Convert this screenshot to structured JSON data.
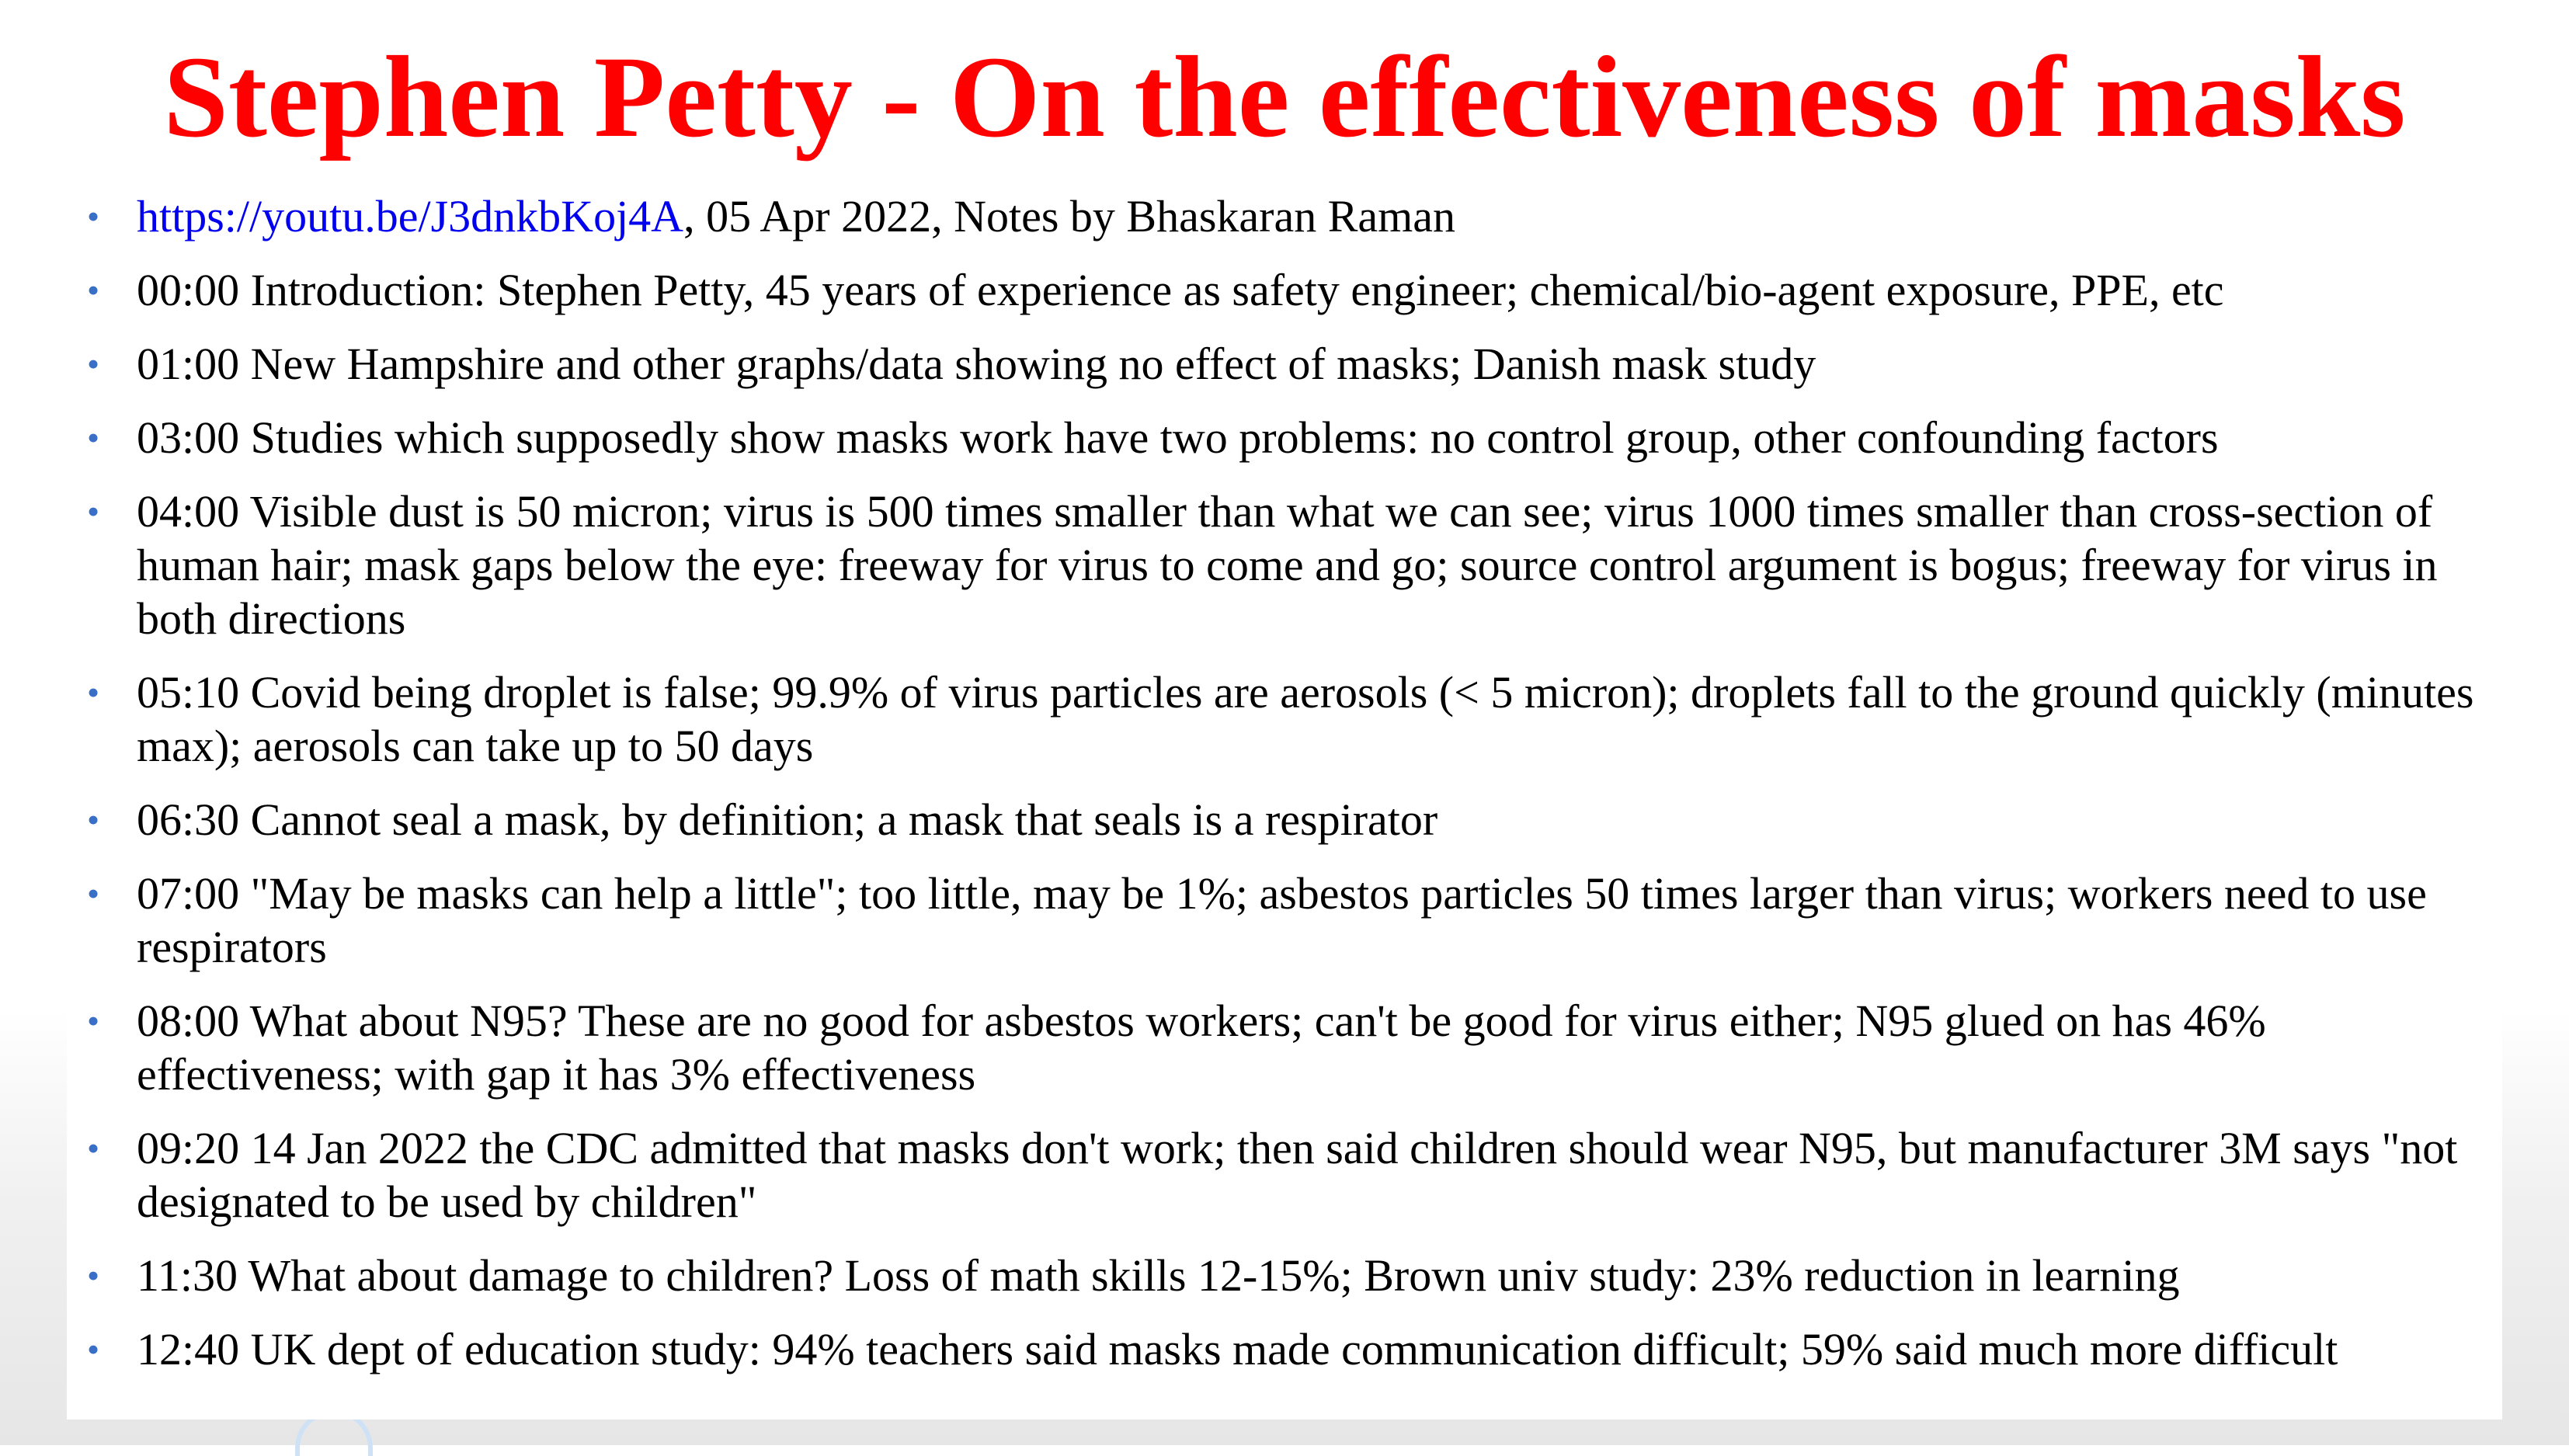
{
  "title": "Stephen Petty - On the effectiveness of masks",
  "bullet_marker": "•",
  "intro": {
    "link": "https://youtu.be/J3dnkbKoj4A",
    "text": ", 05 Apr 2022, Notes by Bhaskaran Raman"
  },
  "items": [
    "00:00 Introduction: Stephen Petty, 45 years of experience as safety engineer; chemical/bio-agent exposure, PPE, etc",
    "01:00 New Hampshire and other graphs/data showing no effect of masks; Danish mask study",
    "03:00 Studies which supposedly show masks work have two problems: no control group, other confounding factors",
    "04:00 Visible dust is 50 micron; virus is 500 times smaller than what we can see; virus 1000 times smaller than cross-section of human hair; mask gaps below the eye: freeway for virus to come and go; source control argument is bogus; freeway for virus in both directions",
    "05:10 Covid being droplet is false; 99.9% of virus particles are aerosols (< 5 micron); droplets fall to the ground quickly (minutes max); aerosols can take up to 50 days",
    "06:30 Cannot seal a mask, by definition; a mask that seals is a respirator",
    "07:00 \"May be masks can help a little\"; too little, may be 1%; asbestos particles 50 times larger than virus; workers need to use respirators",
    "08:00 What about N95? These are no good for asbestos workers; can't be good for virus either; N95 glued on has 46% effectiveness; with gap it has 3% effectiveness",
    "09:20 14 Jan 2022 the CDC admitted that masks don't work; then said children should wear N95, but manufacturer 3M says \"not designated to be used by children\"",
    "11:30 What about damage to children? Loss of math skills 12-15%; Brown univ study: 23% reduction in learning",
    "12:40 UK dept of education study: 94% teachers said masks made communication difficult; 59% said much more difficult"
  ]
}
